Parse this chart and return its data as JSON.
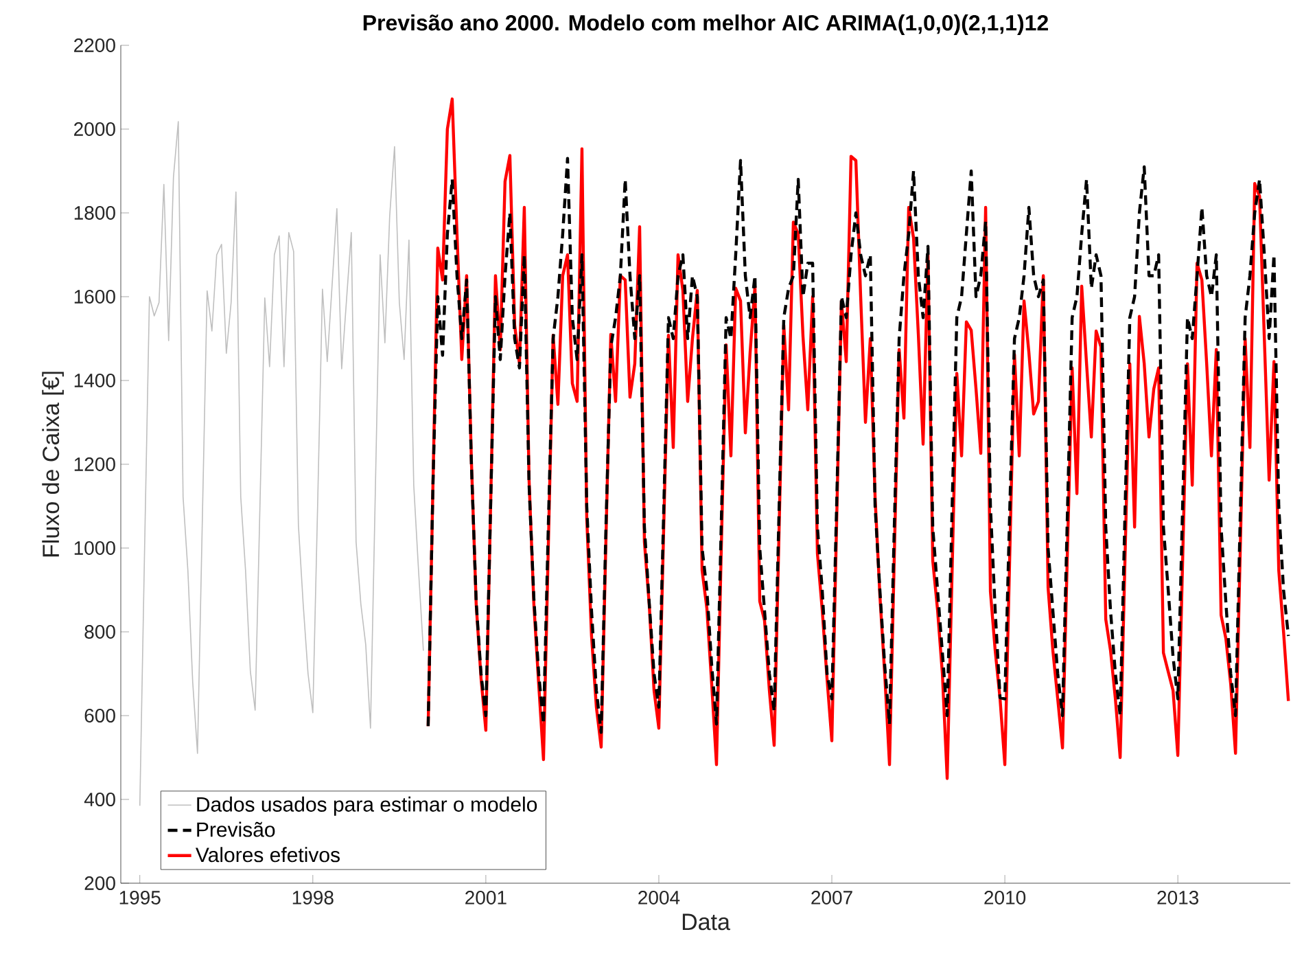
{
  "chart_data": {
    "type": "line",
    "title": "Previsão ano 2000. Modelo com melhor AIC ARIMA(1,0,0)(2,1,1)12",
    "xlabel": "Data",
    "ylabel": "Fluxo de Caixa [€]",
    "xlim": [
      1994.67,
      2014.95
    ],
    "xticks": [
      1995,
      1998,
      2001,
      2004,
      2007,
      2010,
      2013
    ],
    "ylim": [
      200,
      2200
    ],
    "yticks": [
      200,
      400,
      600,
      800,
      1000,
      1200,
      1400,
      1600,
      1800,
      2000,
      2200
    ],
    "legend": "bottom left",
    "marker": "none",
    "grid": false,
    "series": [
      {
        "name": "Dados usados para estimar o modelo",
        "color": "#bfbfbf",
        "line_style": "solid",
        "x": [
          1995,
          1995.083,
          1995.167,
          1995.25,
          1995.333,
          1995.417,
          1995.5,
          1995.583,
          1995.667,
          1995.75,
          1995.833,
          1995.917,
          1996,
          1996.083,
          1996.167,
          1996.25,
          1996.333,
          1996.417,
          1996.5,
          1996.583,
          1996.667,
          1996.75,
          1996.833,
          1996.917,
          1997,
          1997.083,
          1997.167,
          1997.25,
          1997.333,
          1997.417,
          1997.5,
          1997.583,
          1997.667,
          1997.75,
          1997.833,
          1997.917,
          1998,
          1998.083,
          1998.167,
          1998.25,
          1998.333,
          1998.417,
          1998.5,
          1998.583,
          1998.667,
          1998.75,
          1998.833,
          1998.917,
          1999,
          1999.083,
          1999.167,
          1999.25,
          1999.333,
          1999.417,
          1999.5,
          1999.583,
          1999.667,
          1999.75,
          1999.833,
          1999.917
        ],
        "values": [
          385,
          1000,
          1600,
          1554,
          1586,
          1868,
          1495,
          1885,
          2018,
          1122,
          947,
          680,
          510,
          1060,
          1614,
          1518,
          1700,
          1725,
          1465,
          1586,
          1850,
          1122,
          947,
          705,
          613,
          1100,
          1597,
          1433,
          1700,
          1745,
          1433,
          1753,
          1708,
          1055,
          866,
          700,
          607,
          1100,
          1618,
          1445,
          1625,
          1810,
          1428,
          1590,
          1753,
          1015,
          866,
          770,
          570,
          1130,
          1700,
          1490,
          1793,
          1958,
          1586,
          1450,
          1735,
          1150,
          947,
          755
        ]
      },
      {
        "name": "Previsão",
        "color": "#000000",
        "line_style": "dashed",
        "x": [
          2000,
          2000.083,
          2000.167,
          2000.25,
          2000.333,
          2000.417,
          2000.5,
          2000.583,
          2000.667,
          2000.75,
          2000.833,
          2000.917,
          2001,
          2001.083,
          2001.167,
          2001.25,
          2001.333,
          2001.417,
          2001.5,
          2001.583,
          2001.667,
          2001.75,
          2001.833,
          2001.917,
          2002,
          2002.083,
          2002.167,
          2002.25,
          2002.333,
          2002.417,
          2002.5,
          2002.583,
          2002.667,
          2002.75,
          2002.833,
          2002.917,
          2003,
          2003.083,
          2003.167,
          2003.25,
          2003.333,
          2003.417,
          2003.5,
          2003.583,
          2003.667,
          2003.75,
          2003.833,
          2003.917,
          2004,
          2004.083,
          2004.167,
          2004.25,
          2004.333,
          2004.417,
          2004.5,
          2004.583,
          2004.667,
          2004.75,
          2004.833,
          2004.917,
          2005,
          2005.083,
          2005.167,
          2005.25,
          2005.333,
          2005.417,
          2005.5,
          2005.583,
          2005.667,
          2005.75,
          2005.833,
          2005.917,
          2006,
          2006.083,
          2006.167,
          2006.25,
          2006.333,
          2006.417,
          2006.5,
          2006.583,
          2006.667,
          2006.75,
          2006.833,
          2006.917,
          2007,
          2007.083,
          2007.167,
          2007.25,
          2007.333,
          2007.417,
          2007.5,
          2007.583,
          2007.667,
          2007.75,
          2007.833,
          2007.917,
          2008,
          2008.083,
          2008.167,
          2008.25,
          2008.333,
          2008.417,
          2008.5,
          2008.583,
          2008.667,
          2008.75,
          2008.833,
          2008.917,
          2009,
          2009.083,
          2009.167,
          2009.25,
          2009.333,
          2009.417,
          2009.5,
          2009.583,
          2009.667,
          2009.75,
          2009.833,
          2009.917,
          2010,
          2010.083,
          2010.167,
          2010.25,
          2010.333,
          2010.417,
          2010.5,
          2010.583,
          2010.667,
          2010.75,
          2010.833,
          2010.917,
          2011,
          2011.083,
          2011.167,
          2011.25,
          2011.333,
          2011.417,
          2011.5,
          2011.583,
          2011.667,
          2011.75,
          2011.833,
          2011.917,
          2012,
          2012.083,
          2012.167,
          2012.25,
          2012.333,
          2012.417,
          2012.5,
          2012.583,
          2012.667,
          2012.75,
          2012.833,
          2012.917,
          2013,
          2013.083,
          2013.167,
          2013.25,
          2013.333,
          2013.417,
          2013.5,
          2013.583,
          2013.667,
          2013.75,
          2013.833,
          2013.917,
          2014,
          2014.083,
          2014.167,
          2014.25,
          2014.333,
          2014.417,
          2014.5,
          2014.583,
          2014.667,
          2014.75,
          2014.833,
          2014.917
        ],
        "values": [
          575,
          1150,
          1600,
          1460,
          1750,
          1880,
          1650,
          1500,
          1640,
          1200,
          870,
          700,
          600,
          1100,
          1600,
          1450,
          1650,
          1800,
          1500,
          1430,
          1700,
          1150,
          880,
          700,
          580,
          1050,
          1500,
          1600,
          1750,
          1930,
          1550,
          1450,
          1700,
          1100,
          850,
          660,
          560,
          1050,
          1480,
          1550,
          1650,
          1880,
          1650,
          1500,
          1650,
          1050,
          870,
          700,
          620,
          1080,
          1550,
          1500,
          1650,
          1700,
          1500,
          1650,
          1600,
          1000,
          900,
          720,
          580,
          1060,
          1550,
          1500,
          1700,
          1925,
          1650,
          1550,
          1650,
          1000,
          850,
          700,
          610,
          1080,
          1550,
          1620,
          1650,
          1880,
          1600,
          1680,
          1680,
          1050,
          900,
          700,
          640,
          1100,
          1600,
          1550,
          1700,
          1800,
          1700,
          1650,
          1700,
          1100,
          900,
          720,
          580,
          1050,
          1500,
          1650,
          1750,
          1900,
          1650,
          1550,
          1720,
          1050,
          900,
          750,
          600,
          1080,
          1550,
          1600,
          1750,
          1900,
          1600,
          1650,
          1780,
          1100,
          850,
          643,
          640,
          1080,
          1500,
          1550,
          1650,
          1813,
          1650,
          1600,
          1640,
          1000,
          850,
          700,
          600,
          1070,
          1550,
          1600,
          1750,
          1880,
          1620,
          1700,
          1650,
          1050,
          850,
          700,
          600,
          1080,
          1550,
          1600,
          1800,
          1910,
          1650,
          1650,
          1700,
          1050,
          900,
          740,
          640,
          1100,
          1550,
          1500,
          1650,
          1813,
          1650,
          1600,
          1700,
          1050,
          870,
          700,
          600,
          1080,
          1550,
          1650,
          1800,
          1880,
          1700,
          1500,
          1700,
          1100,
          900,
          790
        ]
      },
      {
        "name": "Valores efetivos",
        "color": "#ff0000",
        "line_style": "solid",
        "x": [
          2000,
          2000.083,
          2000.167,
          2000.25,
          2000.333,
          2000.417,
          2000.5,
          2000.583,
          2000.667,
          2000.75,
          2000.833,
          2000.917,
          2001,
          2001.083,
          2001.167,
          2001.25,
          2001.333,
          2001.417,
          2001.5,
          2001.583,
          2001.667,
          2001.75,
          2001.833,
          2001.917,
          2002,
          2002.083,
          2002.167,
          2002.25,
          2002.333,
          2002.417,
          2002.5,
          2002.583,
          2002.667,
          2002.75,
          2002.833,
          2002.917,
          2003,
          2003.083,
          2003.167,
          2003.25,
          2003.333,
          2003.417,
          2003.5,
          2003.583,
          2003.667,
          2003.75,
          2003.833,
          2003.917,
          2004,
          2004.083,
          2004.167,
          2004.25,
          2004.333,
          2004.417,
          2004.5,
          2004.583,
          2004.667,
          2004.75,
          2004.833,
          2004.917,
          2005,
          2005.083,
          2005.167,
          2005.25,
          2005.333,
          2005.417,
          2005.5,
          2005.583,
          2005.667,
          2005.75,
          2005.833,
          2005.917,
          2006,
          2006.083,
          2006.167,
          2006.25,
          2006.333,
          2006.417,
          2006.5,
          2006.583,
          2006.667,
          2006.75,
          2006.833,
          2006.917,
          2007,
          2007.083,
          2007.167,
          2007.25,
          2007.333,
          2007.417,
          2007.5,
          2007.583,
          2007.667,
          2007.75,
          2007.833,
          2007.917,
          2008,
          2008.083,
          2008.167,
          2008.25,
          2008.333,
          2008.417,
          2008.5,
          2008.583,
          2008.667,
          2008.75,
          2008.833,
          2008.917,
          2009,
          2009.083,
          2009.167,
          2009.25,
          2009.333,
          2009.417,
          2009.5,
          2009.583,
          2009.667,
          2009.75,
          2009.833,
          2009.917,
          2010,
          2010.083,
          2010.167,
          2010.25,
          2010.333,
          2010.417,
          2010.5,
          2010.583,
          2010.667,
          2010.75,
          2010.833,
          2010.917,
          2011,
          2011.083,
          2011.167,
          2011.25,
          2011.333,
          2011.417,
          2011.5,
          2011.583,
          2011.667,
          2011.75,
          2011.833,
          2011.917,
          2012,
          2012.083,
          2012.167,
          2012.25,
          2012.333,
          2012.417,
          2012.5,
          2012.583,
          2012.667,
          2012.75,
          2012.833,
          2012.917,
          2013,
          2013.083,
          2013.167,
          2013.25,
          2013.333,
          2013.417,
          2013.5,
          2013.583,
          2013.667,
          2013.75,
          2013.833,
          2013.917,
          2014,
          2014.083,
          2014.167,
          2014.25,
          2014.333,
          2014.417,
          2014.5,
          2014.583,
          2014.667,
          2014.75,
          2014.833,
          2014.917
        ],
        "values": [
          575,
          1150,
          1716,
          1640,
          2000,
          2072,
          1750,
          1450,
          1650,
          1207,
          866,
          689,
          565,
          1100,
          1650,
          1473,
          1875,
          1937,
          1532,
          1440,
          1813,
          1162,
          866,
          675,
          495,
          1000,
          1508,
          1343,
          1650,
          1700,
          1393,
          1350,
          1953,
          1072,
          790,
          620,
          525,
          1020,
          1510,
          1350,
          1650,
          1640,
          1360,
          1440,
          1767,
          1015,
          866,
          660,
          570,
          1040,
          1508,
          1240,
          1700,
          1615,
          1350,
          1500,
          1615,
          947,
          856,
          675,
          483,
          1000,
          1485,
          1220,
          1620,
          1590,
          1275,
          1467,
          1625,
          873,
          827,
          660,
          529,
          1030,
          1532,
          1330,
          1778,
          1750,
          1505,
          1330,
          1600,
          987,
          853,
          688,
          540,
          1060,
          1590,
          1445,
          1935,
          1925,
          1600,
          1300,
          1500,
          1122,
          887,
          700,
          483,
          980,
          1474,
          1310,
          1813,
          1740,
          1510,
          1248,
          1700,
          970,
          853,
          700,
          450,
          930,
          1417,
          1220,
          1540,
          1520,
          1380,
          1226,
          1813,
          896,
          755,
          640,
          483,
          970,
          1462,
          1220,
          1590,
          1467,
          1320,
          1350,
          1650,
          905,
          755,
          640,
          523,
          980,
          1430,
          1130,
          1625,
          1440,
          1265,
          1518,
          1480,
          830,
          755,
          640,
          500,
          970,
          1440,
          1050,
          1553,
          1440,
          1265,
          1380,
          1430,
          750,
          705,
          660,
          505,
          970,
          1440,
          1150,
          1680,
          1640,
          1440,
          1220,
          1474,
          840,
          784,
          675,
          510,
          1000,
          1500,
          1240,
          1870,
          1840,
          1500,
          1162,
          1445,
          947,
          800,
          635
        ]
      }
    ]
  }
}
